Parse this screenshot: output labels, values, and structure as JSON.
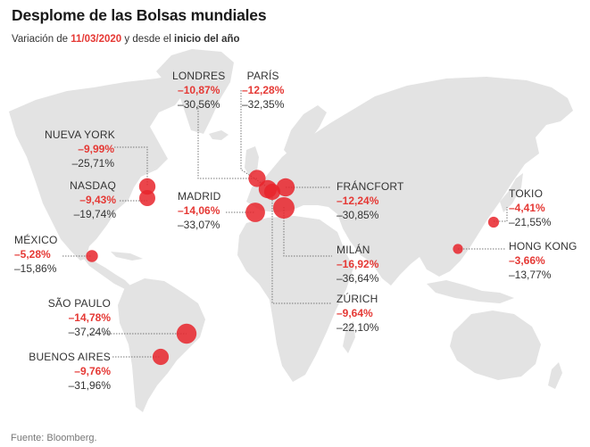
{
  "header": {
    "title": "Desplome de las Bolsas mundiales",
    "subtitle_prefix": "Variación de ",
    "subtitle_date": "11/03/2020",
    "subtitle_middle": " y desde el ",
    "subtitle_suffix": "inicio del año"
  },
  "colors": {
    "accent": "#e53935",
    "land": "#e3e3e3",
    "bubble": "#e8252b"
  },
  "markets": [
    {
      "id": "londres",
      "city": "LONDRES",
      "day_change": "–10,87%",
      "ytd_change": "–30,56%",
      "day_value": -10.87
    },
    {
      "id": "paris",
      "city": "PARÍS",
      "day_change": "–12,28%",
      "ytd_change": "–32,35%",
      "day_value": -12.28
    },
    {
      "id": "nueva-york",
      "city": "NUEVA YORK",
      "day_change": "–9,99%",
      "ytd_change": "–25,71%",
      "day_value": -9.99
    },
    {
      "id": "nasdaq",
      "city": "NASDAQ",
      "day_change": "–9,43%",
      "ytd_change": "–19,74%",
      "day_value": -9.43
    },
    {
      "id": "madrid",
      "city": "MADRID",
      "day_change": "–14,06%",
      "ytd_change": "–33,07%",
      "day_value": -14.06
    },
    {
      "id": "francfort",
      "city": "FRÁNCFORT",
      "day_change": "–12,24%",
      "ytd_change": "–30,85%",
      "day_value": -12.24
    },
    {
      "id": "tokio",
      "city": "TOKIO",
      "day_change": "–4,41%",
      "ytd_change": "–21,55%",
      "day_value": -4.41
    },
    {
      "id": "mexico",
      "city": "MÉXICO",
      "day_change": "–5,28%",
      "ytd_change": "–15,86%",
      "day_value": -5.28
    },
    {
      "id": "hong-kong",
      "city": "HONG KONG",
      "day_change": "–3,66%",
      "ytd_change": "–13,77%",
      "day_value": -3.66
    },
    {
      "id": "milan",
      "city": "MILÁN",
      "day_change": "–16,92%",
      "ytd_change": "–36,64%",
      "day_value": -16.92
    },
    {
      "id": "sao-paulo",
      "city": "SÃO PAULO",
      "day_change": "–14,78%",
      "ytd_change": "–37,24%",
      "day_value": -14.78
    },
    {
      "id": "zurich",
      "city": "ZÚRICH",
      "day_change": "–9,64%",
      "ytd_change": "–22,10%",
      "day_value": -9.64
    },
    {
      "id": "buenos-aires",
      "city": "BUENOS AIRES",
      "day_change": "–9,76%",
      "ytd_change": "–31,96%",
      "day_value": -9.76
    }
  ],
  "footer": {
    "source": "Fuente: Bloomberg."
  }
}
